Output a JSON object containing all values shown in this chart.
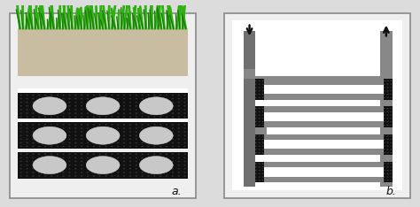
{
  "bg_color": "#dcdcdc",
  "panel_bg": "#efefef",
  "white": "#ffffff",
  "black": "#111111",
  "gray_light": "#c8c8c8",
  "gray_medium": "#888888",
  "gray_dark": "#707070",
  "gray_channel": "#888888",
  "soil_color": "#c8bda0",
  "grass_green": "#2db010",
  "grass_dark": "#1a7a08",
  "label_a": "a.",
  "label_b": "b.",
  "figsize": [
    4.74,
    2.34
  ],
  "dpi": 100
}
